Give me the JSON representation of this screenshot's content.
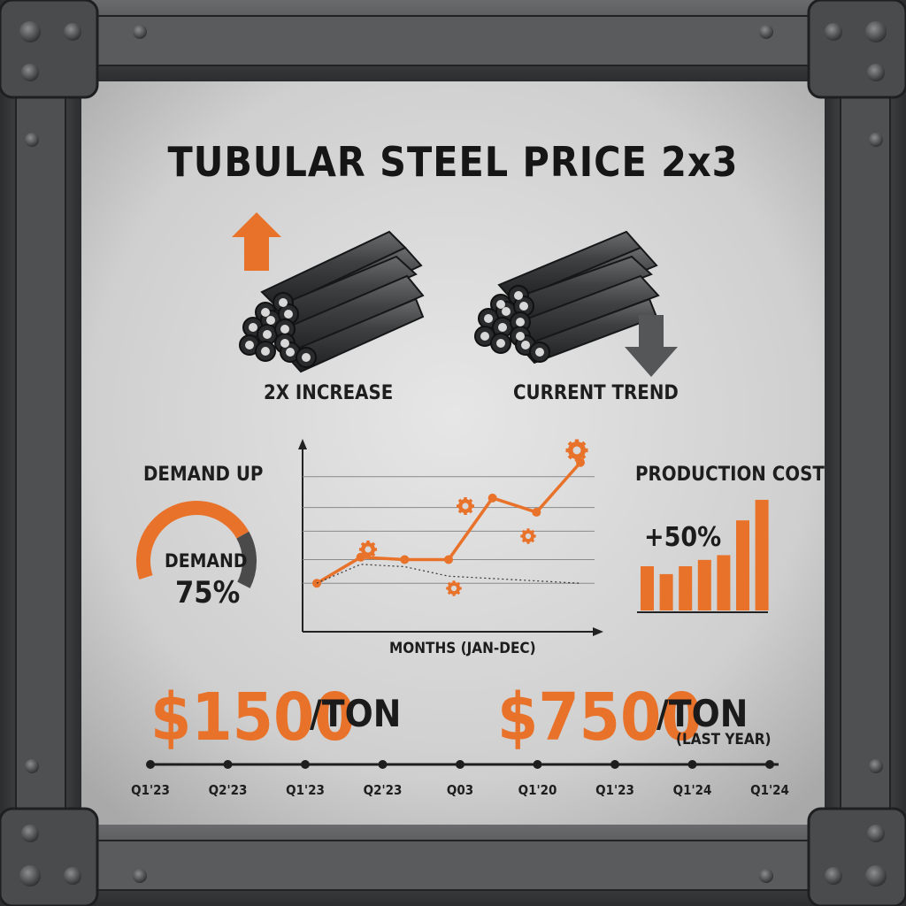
{
  "title": "TUBULAR STEEL PRICE 2x3",
  "labels": {
    "left": "2X INCREASE",
    "right": "CURRENT TREND"
  },
  "gauge": {
    "title": "DEMAND UP",
    "label": "DEMAND",
    "value_text": "75%",
    "fraction": 0.75
  },
  "cost": {
    "title": "PRODUCTION COST",
    "change": "+50%"
  },
  "prices": {
    "first": {
      "value": "$1500",
      "unit": "/TON"
    },
    "second": {
      "value": "$7500",
      "unit": "/TON",
      "note": "(LAST YEAR)"
    }
  },
  "timeline": {
    "ticks": [
      "Q1'23",
      "Q2'23",
      "Q1'23",
      "Q2'23",
      "Q03",
      "Q1'20",
      "Q1'23",
      "Q1'24",
      "Q1'24"
    ]
  },
  "colors": {
    "accent": "#e9722a",
    "dark": "#1e1e1e",
    "gauge_rest": "#4a4a4a"
  },
  "chart_data": [
    {
      "type": "line",
      "xlabel": "MONTHS (JAN-DEC)",
      "x": [
        1,
        2,
        3,
        4,
        5,
        6,
        7
      ],
      "series": [
        {
          "values": [
            1.0,
            2.1,
            2.0,
            2.0,
            4.6,
            4.0,
            6.1
          ]
        },
        {
          "values": [
            1.0,
            1.8,
            1.7,
            1.3,
            1.2,
            1.1,
            1.0
          ],
          "style": "dotted"
        }
      ],
      "ylim": [
        0,
        6.5
      ],
      "grid": true
    },
    {
      "type": "bar",
      "categories": [
        "1",
        "2",
        "3",
        "4",
        "5",
        "6",
        "7"
      ],
      "values": [
        2.8,
        2.3,
        2.8,
        3.2,
        3.5,
        5.7,
        7.0
      ],
      "ylim": [
        0,
        7.5
      ]
    }
  ]
}
